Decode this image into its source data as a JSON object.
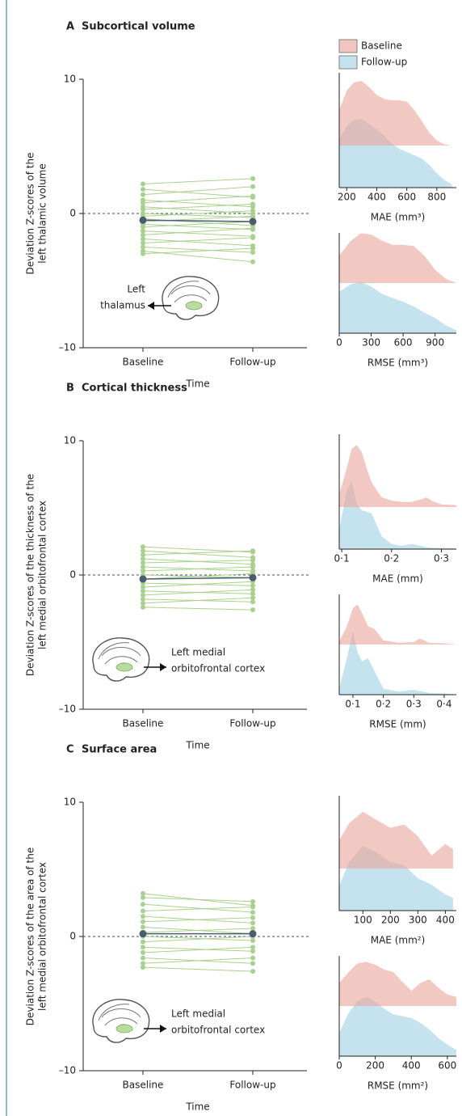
{
  "legend": [
    {
      "name": "Baseline",
      "color": "#f2c6c1"
    },
    {
      "name": "Follow-up",
      "color": "#c5e3ee"
    }
  ],
  "chart_data": [
    {
      "type": "spaghetti",
      "panel": "A",
      "title": "Subcortical volume",
      "ylabel": [
        "Deviation Z-scores of the",
        "left thalamic volume"
      ],
      "xlabel": "Time",
      "annotation": [
        "Left",
        "thalamus"
      ],
      "categories": [
        "Baseline",
        "Follow-up"
      ],
      "ylim": [
        -10,
        10
      ],
      "yticks": [
        10,
        0,
        {
          "value": -10,
          "label": "–10"
        }
      ],
      "subject_color": "#a9d18e",
      "mean_color": "#4a5d6e",
      "mean": [
        -0.5,
        -0.6
      ],
      "subjects": [
        [
          2.2,
          2.6
        ],
        [
          1.8,
          1.2
        ],
        [
          1.4,
          2.0
        ],
        [
          1.0,
          0.5
        ],
        [
          0.8,
          1.3
        ],
        [
          0.5,
          0.0
        ],
        [
          0.3,
          0.7
        ],
        [
          0.0,
          -0.3
        ],
        [
          -0.2,
          0.2
        ],
        [
          -0.4,
          -0.9
        ],
        [
          -0.6,
          -0.2
        ],
        [
          -0.8,
          -1.2
        ],
        [
          -1.0,
          -0.6
        ],
        [
          -1.3,
          -1.7
        ],
        [
          -1.6,
          -1.1
        ],
        [
          -1.9,
          -2.4
        ],
        [
          -2.2,
          -1.8
        ],
        [
          -2.5,
          -2.9
        ],
        [
          -2.8,
          -3.6
        ],
        [
          -3.0,
          -2.6
        ]
      ]
    },
    {
      "type": "ridgeline",
      "xlabel": "MAE (mm³)",
      "xlim": [
        150,
        930
      ],
      "xticks": [
        200,
        400,
        600,
        800
      ],
      "x": [
        150,
        200,
        250,
        300,
        350,
        400,
        450,
        500,
        550,
        600,
        650,
        700,
        750,
        800,
        850,
        900
      ],
      "baseline": [
        0.55,
        0.85,
        0.98,
        1.0,
        0.9,
        0.78,
        0.72,
        0.7,
        0.7,
        0.68,
        0.55,
        0.38,
        0.2,
        0.08,
        0.02,
        0
      ],
      "follow_up": [
        0.75,
        0.95,
        1.05,
        1.06,
        0.98,
        0.9,
        0.8,
        0.68,
        0.6,
        0.55,
        0.5,
        0.45,
        0.35,
        0.22,
        0.12,
        0.05
      ]
    },
    {
      "type": "ridgeline",
      "xlabel": "RMSE (mm³)",
      "xlim": [
        0,
        1100
      ],
      "xticks": [
        0,
        300,
        600,
        900
      ],
      "x": [
        0,
        100,
        200,
        300,
        400,
        500,
        600,
        700,
        800,
        900,
        1000,
        1100
      ],
      "baseline": [
        0.45,
        0.68,
        0.82,
        0.8,
        0.7,
        0.63,
        0.63,
        0.61,
        0.45,
        0.22,
        0.07,
        0
      ],
      "follow_up": [
        0.68,
        0.8,
        0.85,
        0.77,
        0.65,
        0.58,
        0.52,
        0.44,
        0.34,
        0.25,
        0.13,
        0.05
      ]
    },
    {
      "type": "spaghetti",
      "panel": "B",
      "title": "Cortical thickness",
      "ylabel": [
        "Deviation Z-scores of the thickness of the",
        "left medial orbitofrontal cortex"
      ],
      "xlabel": "Time",
      "annotation": [
        "Left medial",
        "orbitofrontal cortex"
      ],
      "categories": [
        "Baseline",
        "Follow-up"
      ],
      "ylim": [
        -10,
        10
      ],
      "yticks": [
        10,
        0,
        {
          "value": -10,
          "label": "–10"
        }
      ],
      "subject_color": "#a9d18e",
      "mean_color": "#4a5d6e",
      "mean": [
        -0.3,
        -0.2
      ],
      "subjects": [
        [
          2.1,
          1.7
        ],
        [
          1.8,
          1.3
        ],
        [
          1.5,
          1.8
        ],
        [
          1.2,
          0.8
        ],
        [
          0.9,
          1.1
        ],
        [
          0.6,
          0.3
        ],
        [
          0.3,
          0.6
        ],
        [
          0.0,
          -0.2
        ],
        [
          -0.3,
          0.1
        ],
        [
          -0.6,
          -0.8
        ],
        [
          -0.9,
          -0.5
        ],
        [
          -1.2,
          -1.4
        ],
        [
          -1.5,
          -1.1
        ],
        [
          -1.8,
          -2.0
        ],
        [
          -2.1,
          -1.7
        ],
        [
          -2.4,
          -2.6
        ]
      ]
    },
    {
      "type": "ridgeline",
      "xlabel": "MAE (mm)",
      "xlim": [
        0.095,
        0.33
      ],
      "xticks": [
        {
          "value": 0.1,
          "label": "0·1"
        },
        {
          "value": 0.2,
          "label": "0·2"
        },
        {
          "value": 0.3,
          "label": "0·3"
        }
      ],
      "x": [
        0.095,
        0.11,
        0.12,
        0.13,
        0.14,
        0.15,
        0.16,
        0.18,
        0.2,
        0.22,
        0.24,
        0.26,
        0.27,
        0.28,
        0.3,
        0.33
      ],
      "baseline": [
        0.2,
        0.6,
        0.9,
        0.96,
        0.85,
        0.6,
        0.38,
        0.15,
        0.1,
        0.08,
        0.08,
        0.12,
        0.15,
        0.1,
        0.04,
        0.03
      ],
      "follow_up": [
        0.3,
        0.9,
        1.05,
        0.7,
        0.6,
        0.58,
        0.55,
        0.2,
        0.08,
        0.05,
        0.08,
        0.05,
        0.03,
        0.02,
        0.02,
        0.01
      ]
    },
    {
      "type": "ridgeline",
      "xlabel": "RMSE (mm)",
      "xlim": [
        0.055,
        0.44
      ],
      "xticks": [
        {
          "value": 0.1,
          "label": "0·1"
        },
        {
          "value": 0.2,
          "label": "0·2"
        },
        {
          "value": 0.3,
          "label": "0·3"
        },
        {
          "value": 0.4,
          "label": "0·4"
        }
      ],
      "x": [
        0.055,
        0.08,
        0.1,
        0.115,
        0.13,
        0.15,
        0.17,
        0.2,
        0.25,
        0.3,
        0.32,
        0.35,
        0.4,
        0.44
      ],
      "baseline": [
        0.05,
        0.3,
        0.6,
        0.66,
        0.52,
        0.3,
        0.26,
        0.07,
        0.03,
        0.04,
        0.1,
        0.03,
        0.02,
        0
      ],
      "follow_up": [
        0.1,
        0.6,
        1.04,
        0.7,
        0.55,
        0.6,
        0.4,
        0.1,
        0.05,
        0.08,
        0.06,
        0.03,
        0.02,
        0
      ]
    },
    {
      "type": "spaghetti",
      "panel": "C",
      "title": "Surface area",
      "ylabel": [
        "Deviation Z-scores of the area of the",
        "left medial orbitofrontal cortex"
      ],
      "xlabel": "Time",
      "annotation": [
        "Left medial",
        "orbitofrontal cortex"
      ],
      "categories": [
        "Baseline",
        "Follow-up"
      ],
      "ylim": [
        -10,
        10
      ],
      "yticks": [
        10,
        0,
        {
          "value": -10,
          "label": "–10"
        }
      ],
      "subject_color": "#a9d18e",
      "mean_color": "#4a5d6e",
      "mean": [
        0.2,
        0.2
      ],
      "subjects": [
        [
          3.2,
          2.3
        ],
        [
          2.9,
          2.6
        ],
        [
          2.4,
          1.8
        ],
        [
          1.9,
          2.2
        ],
        [
          1.5,
          1.0
        ],
        [
          1.1,
          1.4
        ],
        [
          0.7,
          0.2
        ],
        [
          0.3,
          0.6
        ],
        [
          0.0,
          -0.3
        ],
        [
          -0.4,
          0.0
        ],
        [
          -0.8,
          -1.1
        ],
        [
          -1.2,
          -0.8
        ],
        [
          -1.6,
          -2.0
        ],
        [
          -2.0,
          -1.6
        ],
        [
          -2.3,
          -2.6
        ]
      ]
    },
    {
      "type": "ridgeline",
      "xlabel": "MAE (mm²)",
      "xlim": [
        14,
        440
      ],
      "xticks": [
        100,
        200,
        300,
        400
      ],
      "x": [
        14,
        50,
        100,
        150,
        200,
        250,
        300,
        350,
        400,
        428
      ],
      "baseline": [
        0.44,
        0.7,
        0.88,
        0.75,
        0.63,
        0.68,
        0.5,
        0.2,
        0.38,
        0.3
      ],
      "follow_up": [
        0.38,
        0.75,
        1.0,
        0.9,
        0.75,
        0.7,
        0.5,
        0.4,
        0.25,
        0.2
      ]
    },
    {
      "type": "ridgeline",
      "xlabel": "RMSE (mm²)",
      "xlim": [
        0,
        650
      ],
      "xticks": [
        0,
        200,
        400,
        600
      ],
      "x": [
        0,
        50,
        100,
        150,
        200,
        250,
        300,
        350,
        400,
        450,
        500,
        550,
        600,
        650
      ],
      "baseline": [
        0.38,
        0.55,
        0.7,
        0.73,
        0.68,
        0.6,
        0.56,
        0.4,
        0.25,
        0.38,
        0.44,
        0.3,
        0.19,
        0.15
      ],
      "follow_up": [
        0.38,
        0.7,
        0.9,
        0.98,
        0.9,
        0.78,
        0.69,
        0.66,
        0.63,
        0.55,
        0.44,
        0.3,
        0.19,
        0.1
      ]
    }
  ]
}
